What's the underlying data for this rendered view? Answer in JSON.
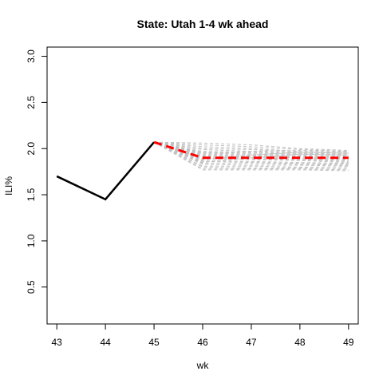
{
  "chart_data": {
    "type": "line",
    "title": "State: Utah 1-4 wk ahead",
    "xlabel": "wk",
    "ylabel": "ILI%",
    "xlim": [
      42.8,
      49.2
    ],
    "ylim": [
      0.1,
      3.1
    ],
    "x_ticks": [
      "43",
      "44",
      "45",
      "46",
      "47",
      "48",
      "49"
    ],
    "y_ticks": [
      "0.5",
      "1.0",
      "1.5",
      "2.0",
      "2.5",
      "3.0"
    ],
    "observed": {
      "x": [
        43,
        44,
        45
      ],
      "y": [
        1.7,
        1.45,
        2.07
      ],
      "color": "#000000"
    },
    "forecast": {
      "x": [
        45,
        46,
        47,
        48,
        49
      ],
      "y": [
        2.07,
        1.9,
        1.9,
        1.9,
        1.9
      ],
      "color": "#ff0000"
    },
    "trajectories": {
      "color": "#c0c0c0",
      "x": [
        45,
        46,
        47,
        48,
        49
      ],
      "paths": [
        [
          2.07,
          2.06,
          2.04,
          2.0,
          1.98
        ],
        [
          2.07,
          2.04,
          2.02,
          1.99,
          1.97
        ],
        [
          2.07,
          2.02,
          2.0,
          1.97,
          1.96
        ],
        [
          2.07,
          2.0,
          1.99,
          1.96,
          1.95
        ],
        [
          2.07,
          1.99,
          1.97,
          1.95,
          1.94
        ],
        [
          2.07,
          1.97,
          1.96,
          1.95,
          1.93
        ],
        [
          2.07,
          1.96,
          1.95,
          1.94,
          1.92
        ],
        [
          2.07,
          1.95,
          1.94,
          1.93,
          1.91
        ],
        [
          2.07,
          1.94,
          1.93,
          1.92,
          1.9
        ],
        [
          2.07,
          1.93,
          1.92,
          1.91,
          1.89
        ],
        [
          2.07,
          1.92,
          1.91,
          1.9,
          1.88
        ],
        [
          2.07,
          1.91,
          1.9,
          1.89,
          1.87
        ],
        [
          2.07,
          1.9,
          1.89,
          1.88,
          1.86
        ],
        [
          2.07,
          1.89,
          1.88,
          1.87,
          1.85
        ],
        [
          2.07,
          1.87,
          1.86,
          1.85,
          1.84
        ],
        [
          2.07,
          1.86,
          1.85,
          1.84,
          1.83
        ],
        [
          2.07,
          1.84,
          1.84,
          1.83,
          1.82
        ],
        [
          2.07,
          1.83,
          1.82,
          1.82,
          1.81
        ],
        [
          2.07,
          1.81,
          1.81,
          1.8,
          1.8
        ],
        [
          2.07,
          1.8,
          1.79,
          1.79,
          1.78
        ],
        [
          2.07,
          1.78,
          1.78,
          1.78,
          1.77
        ],
        [
          2.07,
          1.77,
          1.77,
          1.77,
          1.76
        ],
        [
          2.07,
          1.95,
          1.97,
          1.98,
          1.97
        ],
        [
          2.07,
          1.88,
          1.93,
          1.96,
          1.95
        ],
        [
          2.07,
          1.85,
          1.9,
          1.94,
          1.93
        ]
      ]
    }
  }
}
